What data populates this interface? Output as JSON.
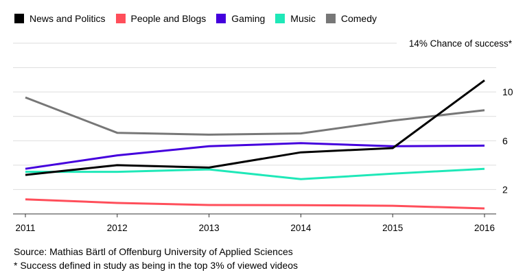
{
  "chart_data": {
    "type": "line",
    "title": "",
    "xlabel": "",
    "ylabel": "",
    "annotation": "14% Chance of success*",
    "x": [
      "2011",
      "2012",
      "2013",
      "2014",
      "2015",
      "2016"
    ],
    "ylim": [
      0,
      14
    ],
    "yticks": [
      2,
      6,
      10
    ],
    "ygrid": [
      2,
      4,
      6,
      8,
      10,
      12,
      14
    ],
    "grid": true,
    "legend_position": "top-left",
    "series": [
      {
        "name": "News and Politics",
        "color": "#000000",
        "values": [
          3.2,
          4.0,
          3.8,
          5.05,
          5.4,
          10.95
        ]
      },
      {
        "name": "People and Blogs",
        "color": "#ff4e5a",
        "values": [
          1.2,
          0.9,
          0.73,
          0.72,
          0.67,
          0.45
        ]
      },
      {
        "name": "Gaming",
        "color": "#4400dd",
        "values": [
          3.7,
          4.8,
          5.55,
          5.8,
          5.55,
          5.6
        ]
      },
      {
        "name": "Music",
        "color": "#1fe8b8",
        "values": [
          3.45,
          3.45,
          3.65,
          2.85,
          3.3,
          3.7
        ]
      },
      {
        "name": "Comedy",
        "color": "#777777",
        "values": [
          9.55,
          6.65,
          6.5,
          6.6,
          7.65,
          8.5
        ]
      }
    ]
  },
  "footer": {
    "source": "Source: Mathias Bärtl of Offenburg University of Applied Sciences",
    "note": "* Success defined in study as being in the top 3% of viewed videos"
  }
}
